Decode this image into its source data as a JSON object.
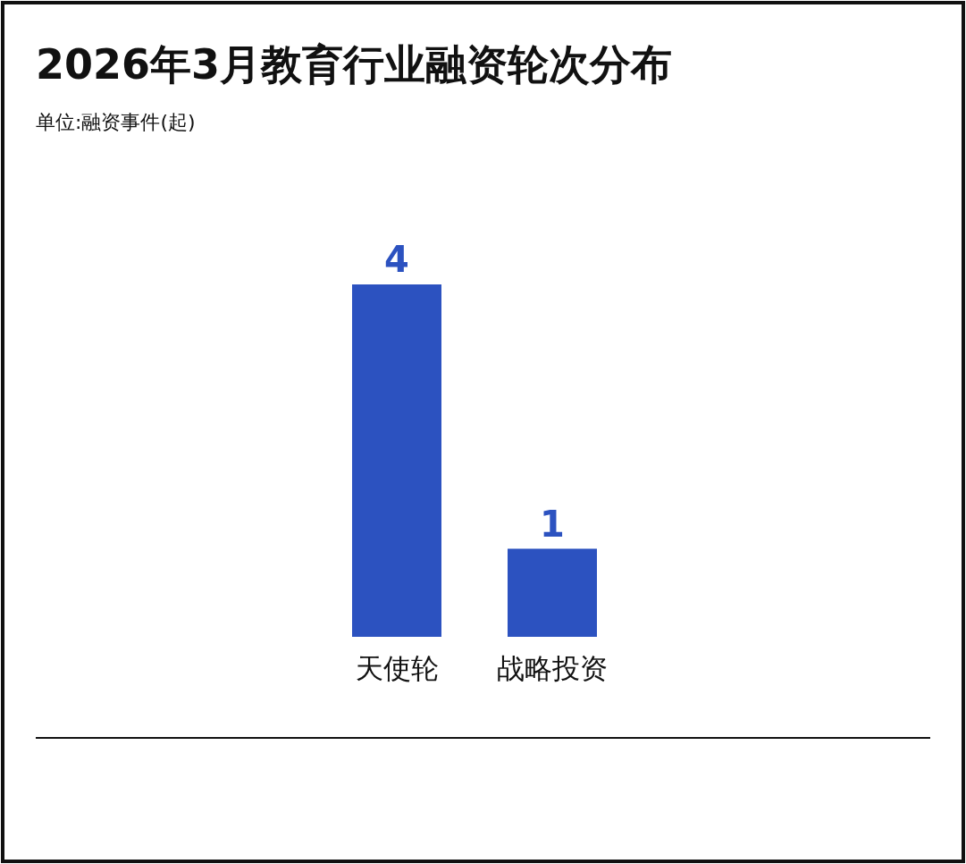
{
  "chart_data": {
    "type": "bar",
    "title": "2026年3月教育行业融资轮次分布",
    "subtitle": "单位:融资事件(起)",
    "categories": [
      "天使轮",
      "战略投资"
    ],
    "values": [
      4,
      1
    ],
    "color": "#2c52c0",
    "data_labels": true
  }
}
